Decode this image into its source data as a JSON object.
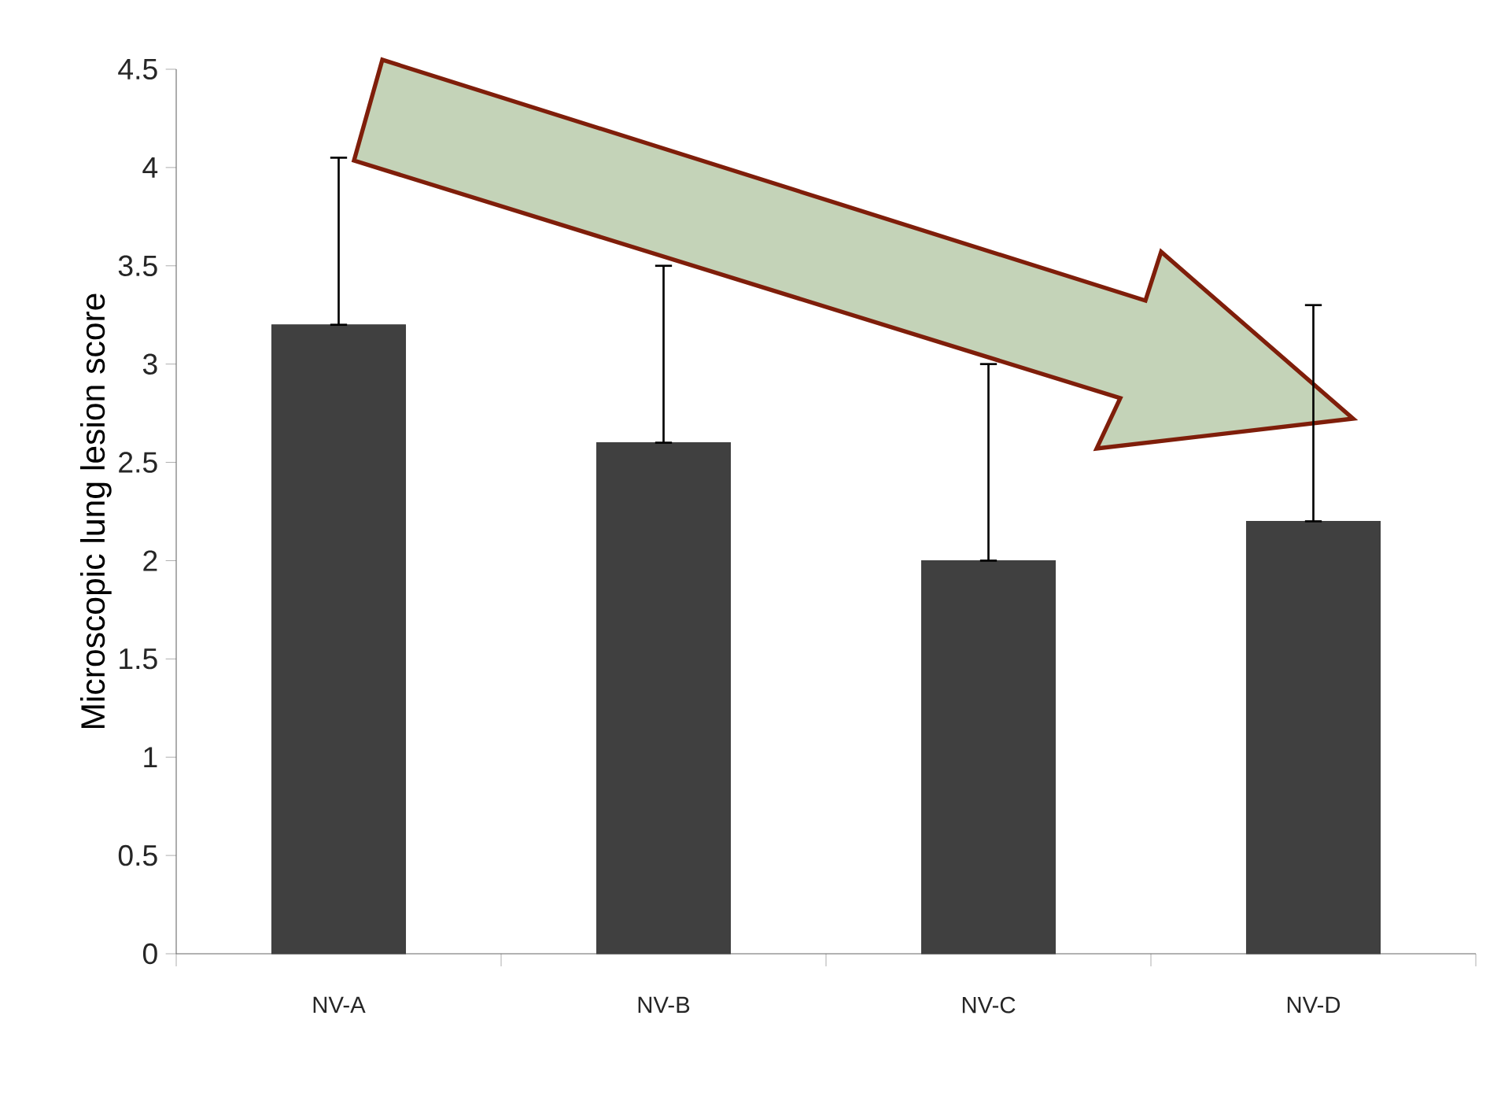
{
  "chart_data": {
    "type": "bar",
    "ylabel": "Microscopic lung lesion score",
    "categories": [
      "NV-A",
      "NV-B",
      "NV-C",
      "NV-D"
    ],
    "values": [
      3.2,
      2.6,
      2.0,
      2.2
    ],
    "errors": [
      [
        3.2,
        4.05
      ],
      [
        2.6,
        3.5
      ],
      [
        2.0,
        3.0
      ],
      [
        2.2,
        3.3
      ]
    ],
    "color": "#404040",
    "ylim": [
      0,
      4.5
    ],
    "yticks": [
      0,
      0.5,
      1,
      1.5,
      2,
      2.5,
      3,
      3.5,
      4,
      4.5
    ]
  }
}
